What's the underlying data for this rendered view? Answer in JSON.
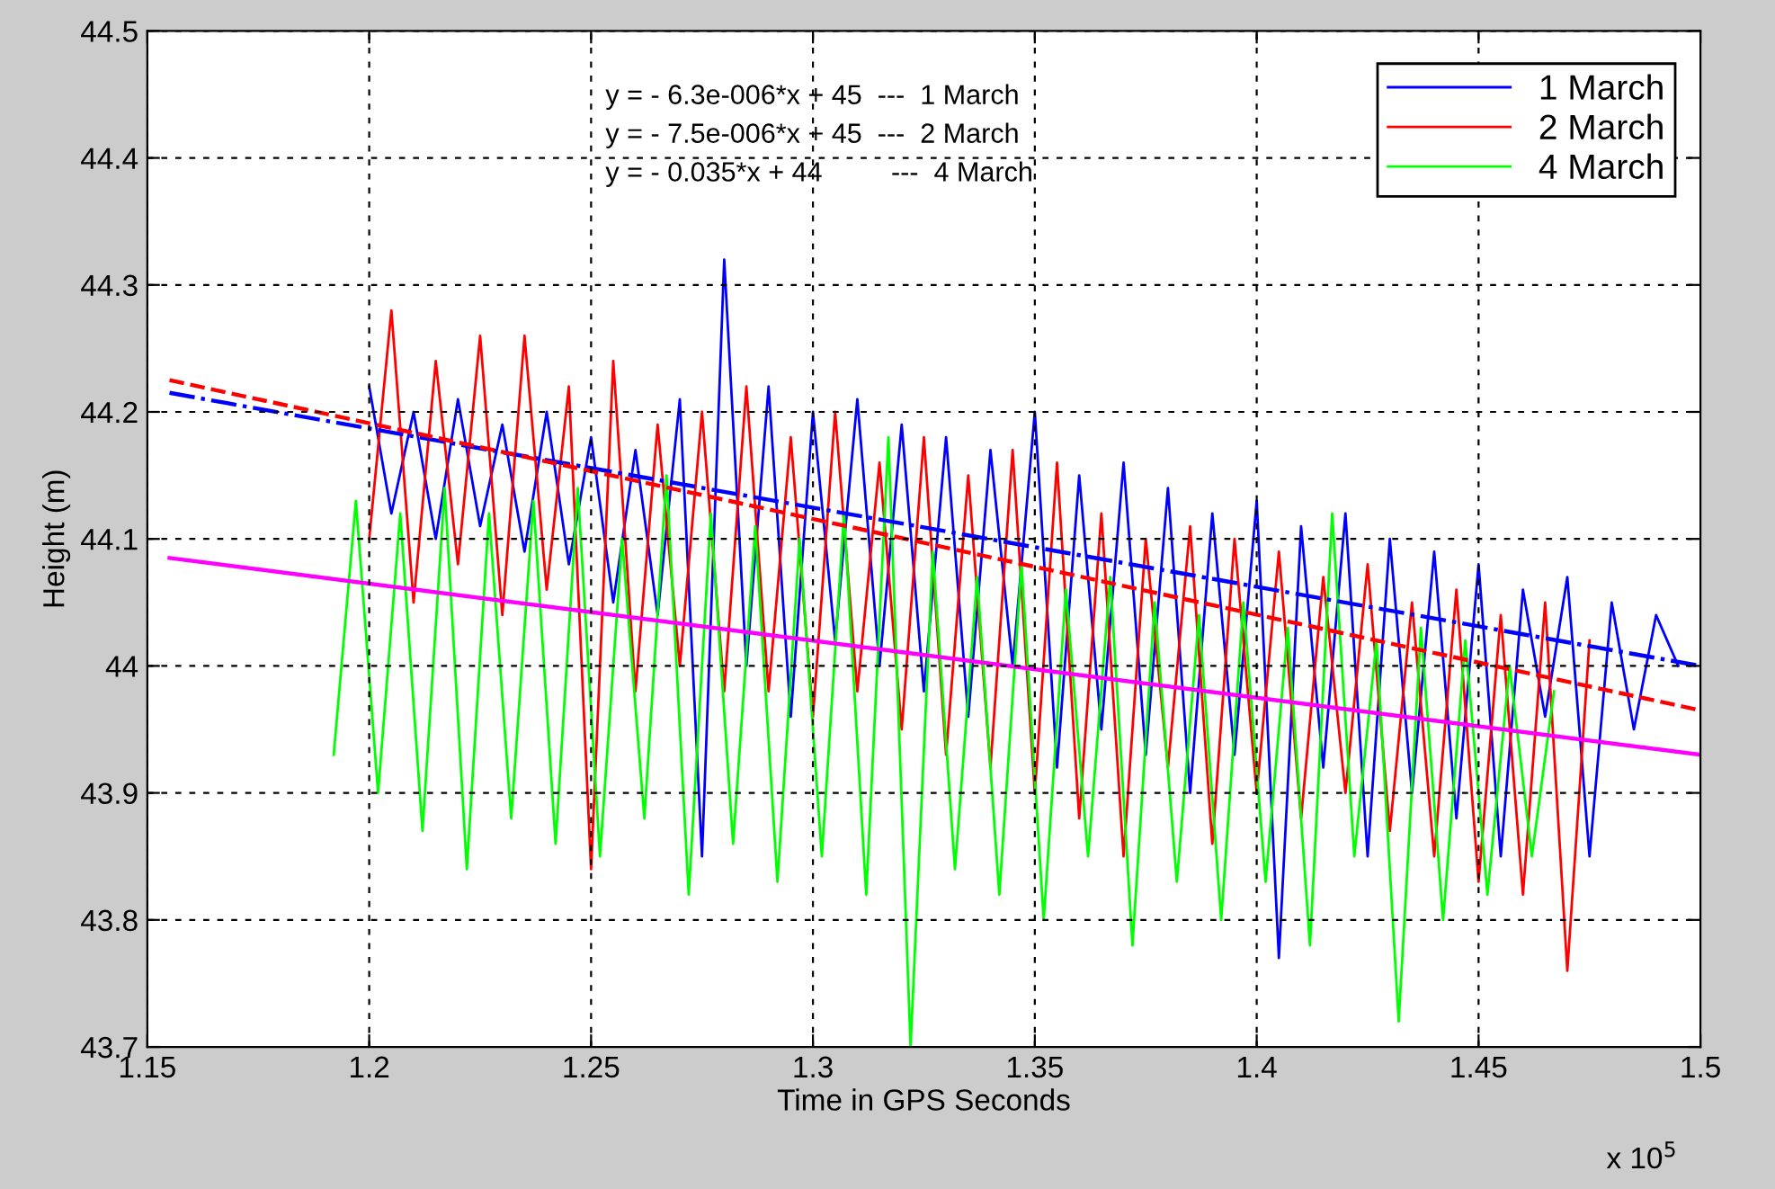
{
  "chart_data": {
    "type": "line",
    "xlabel": "Time in GPS Seconds",
    "ylabel": "Height (m)",
    "xlim": [
      1.15,
      1.5
    ],
    "xticks": [
      1.15,
      1.2,
      1.25,
      1.3,
      1.35,
      1.4,
      1.45,
      1.5
    ],
    "ylim": [
      43.7,
      44.5
    ],
    "yticks": [
      43.7,
      43.8,
      43.9,
      44,
      44.1,
      44.2,
      44.3,
      44.4,
      44.5
    ],
    "grid": true,
    "legend": "top right",
    "marker": "none",
    "annotations": [
      "y = - 6.3e-006*x + 45  ---  1 March",
      "y = - 7.5e-006*x + 45  ---  2 March",
      "y = - 0.035*x + 44         ---  4 March",
      "x 10$^{5}$"
    ],
    "series": [
      {
        "name": "1 March",
        "color": "#0000ff",
        "line_style": "solid",
        "x": [
          1.2,
          1.205,
          1.21,
          1.215,
          1.22,
          1.225,
          1.23,
          1.235,
          1.24,
          1.245,
          1.25,
          1.255,
          1.26,
          1.265,
          1.27,
          1.275,
          1.28,
          1.285,
          1.29,
          1.295,
          1.3,
          1.305,
          1.31,
          1.315,
          1.32,
          1.325,
          1.33,
          1.335,
          1.34,
          1.345,
          1.35,
          1.355,
          1.36,
          1.365,
          1.37,
          1.375,
          1.38,
          1.385,
          1.39,
          1.395,
          1.4,
          1.405,
          1.41,
          1.415,
          1.42,
          1.425,
          1.43,
          1.435,
          1.44,
          1.445,
          1.45,
          1.455,
          1.46,
          1.465,
          1.47,
          1.475,
          1.48,
          1.485,
          1.49,
          1.495
        ],
        "values": [
          44.22,
          44.12,
          44.2,
          44.1,
          44.21,
          44.11,
          44.19,
          44.09,
          44.2,
          44.08,
          44.18,
          44.05,
          44.17,
          44.04,
          44.21,
          43.85,
          44.32,
          44.0,
          44.22,
          43.96,
          44.2,
          44.02,
          44.21,
          44.0,
          44.19,
          43.98,
          44.18,
          43.96,
          44.17,
          44.0,
          44.2,
          43.92,
          44.15,
          43.95,
          44.16,
          43.93,
          44.14,
          43.9,
          44.12,
          43.93,
          44.13,
          43.77,
          44.11,
          43.92,
          44.12,
          43.85,
          44.1,
          43.9,
          44.09,
          43.88,
          44.08,
          43.85,
          44.06,
          43.96,
          44.07,
          43.85,
          44.05,
          43.95,
          44.04,
          44.0
        ]
      },
      {
        "name": "2 March",
        "color": "#ff0000",
        "line_style": "solid",
        "x": [
          1.2,
          1.205,
          1.21,
          1.215,
          1.22,
          1.225,
          1.23,
          1.235,
          1.24,
          1.245,
          1.25,
          1.255,
          1.26,
          1.265,
          1.27,
          1.275,
          1.28,
          1.285,
          1.29,
          1.295,
          1.3,
          1.305,
          1.31,
          1.315,
          1.32,
          1.325,
          1.33,
          1.335,
          1.34,
          1.345,
          1.35,
          1.355,
          1.36,
          1.365,
          1.37,
          1.375,
          1.38,
          1.385,
          1.39,
          1.395,
          1.4,
          1.405,
          1.41,
          1.415,
          1.42,
          1.425,
          1.43,
          1.435,
          1.44,
          1.445,
          1.45,
          1.455,
          1.46,
          1.465,
          1.47,
          1.475
        ],
        "values": [
          44.1,
          44.28,
          44.05,
          44.24,
          44.08,
          44.26,
          44.04,
          44.26,
          44.06,
          44.22,
          43.84,
          44.24,
          43.98,
          44.19,
          44.0,
          44.2,
          43.98,
          44.22,
          43.98,
          44.18,
          43.96,
          44.2,
          43.98,
          44.16,
          43.95,
          44.18,
          43.93,
          44.15,
          43.92,
          44.17,
          43.9,
          44.16,
          43.88,
          44.12,
          43.85,
          44.1,
          43.92,
          44.11,
          43.86,
          44.1,
          43.9,
          44.09,
          43.88,
          44.07,
          43.9,
          44.08,
          43.87,
          44.05,
          43.85,
          44.06,
          43.83,
          44.04,
          43.82,
          44.05,
          43.76,
          44.02
        ]
      },
      {
        "name": "4 March",
        "color": "#00ff00",
        "line_style": "solid",
        "x": [
          1.192,
          1.197,
          1.202,
          1.207,
          1.212,
          1.217,
          1.222,
          1.227,
          1.232,
          1.237,
          1.242,
          1.247,
          1.252,
          1.257,
          1.262,
          1.267,
          1.272,
          1.277,
          1.282,
          1.287,
          1.292,
          1.297,
          1.302,
          1.307,
          1.312,
          1.317,
          1.322,
          1.327,
          1.332,
          1.337,
          1.342,
          1.347,
          1.352,
          1.357,
          1.362,
          1.367,
          1.372,
          1.377,
          1.382,
          1.387,
          1.392,
          1.397,
          1.402,
          1.407,
          1.412,
          1.417,
          1.422,
          1.427,
          1.432,
          1.437,
          1.442,
          1.447,
          1.452,
          1.457,
          1.462,
          1.467
        ],
        "values": [
          43.93,
          44.13,
          43.9,
          44.12,
          43.87,
          44.14,
          43.84,
          44.12,
          43.88,
          44.13,
          43.86,
          44.14,
          43.85,
          44.1,
          43.88,
          44.15,
          43.82,
          44.12,
          43.86,
          44.11,
          43.83,
          44.1,
          43.85,
          44.12,
          43.82,
          44.18,
          43.7,
          44.09,
          43.84,
          44.07,
          43.82,
          44.08,
          43.8,
          44.06,
          43.85,
          44.07,
          43.78,
          44.05,
          43.83,
          44.04,
          43.8,
          44.05,
          43.83,
          44.03,
          43.78,
          44.12,
          43.85,
          44.02,
          43.72,
          44.03,
          43.8,
          44.02,
          43.82,
          44.0,
          43.85,
          43.98
        ]
      },
      {
        "color": "#0000ff",
        "line_style": "dashdot",
        "x": [
          1.155,
          1.5
        ],
        "values": [
          44.215,
          44.0
        ]
      },
      {
        "color": "#ff0000",
        "line_style": "dashed",
        "x": [
          1.155,
          1.5
        ],
        "values": [
          44.225,
          43.965
        ]
      },
      {
        "color": "#ff00ff",
        "line_style": "solid",
        "x": [
          1.155,
          1.5
        ],
        "values": [
          44.085,
          43.93
        ]
      }
    ]
  }
}
